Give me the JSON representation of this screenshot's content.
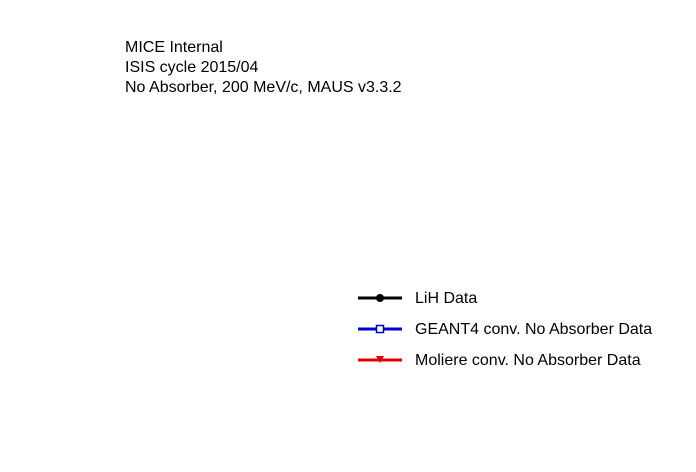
{
  "chart_data": {
    "type": "line",
    "annotations": [
      "MICE Internal",
      "ISIS cycle 2015/04",
      "No Absorber, 200 MeV/c, MAUS v3.3.2"
    ],
    "series": [
      {
        "name": "LiH Data",
        "color": "#000000",
        "marker": "filled-circle",
        "values": []
      },
      {
        "name": "GEANT4 conv. No Absorber Data",
        "color": "#0000cc",
        "marker": "open-square",
        "values": []
      },
      {
        "name": "Moliere conv. No Absorber Data",
        "color": "#e00000",
        "marker": "filled-triangle-down",
        "values": []
      }
    ],
    "legend_position": "bottom-right"
  }
}
